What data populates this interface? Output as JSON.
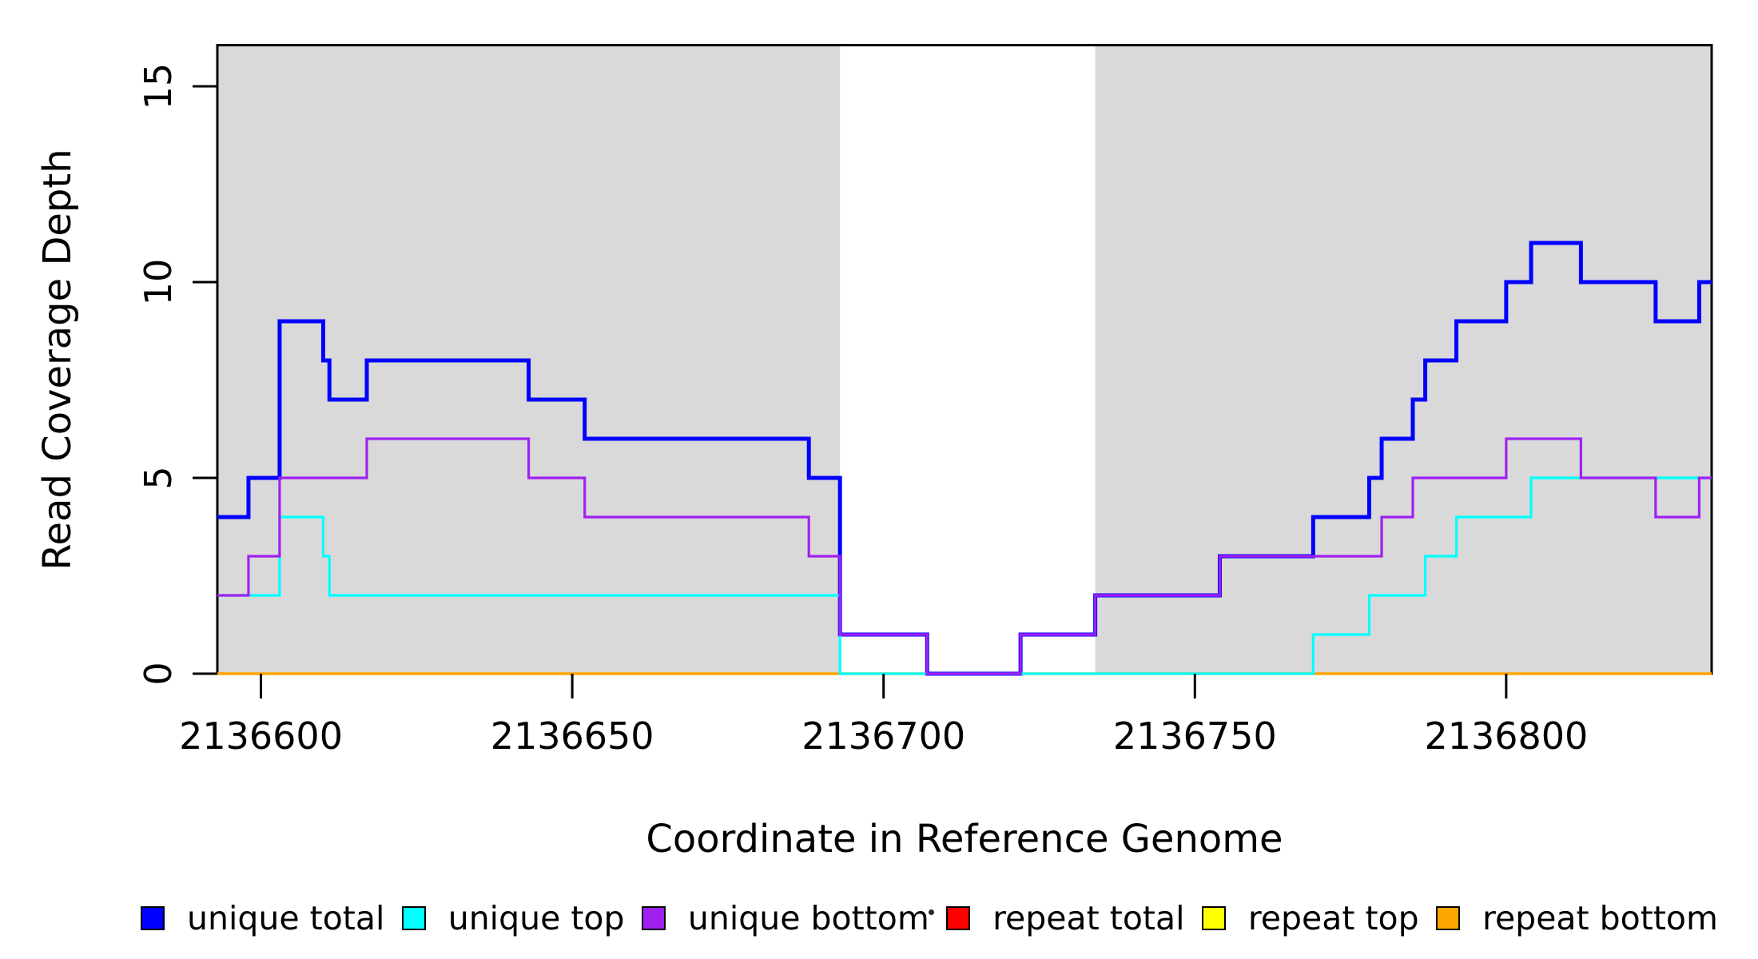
{
  "chart_data": {
    "type": "step-line",
    "xlabel": "Coordinate in Reference Genome",
    "ylabel": "Read Coverage Depth",
    "x_range": [
      2136593,
      2136833
    ],
    "y_range": [
      0,
      16.05
    ],
    "x_ticks": [
      "2136600",
      "2136650",
      "2136700",
      "2136750",
      "2136800"
    ],
    "x_tick_values": [
      2136600,
      2136650,
      2136700,
      2136750,
      2136800
    ],
    "y_ticks": [
      "0",
      "5",
      "10",
      "15"
    ],
    "y_tick_values": [
      0,
      5,
      10,
      15
    ],
    "grid": false,
    "panel_shade_color": "#d9d9d9",
    "shaded_regions": [
      [
        2136593,
        2136693
      ],
      [
        2136734,
        2136833
      ]
    ],
    "unshaded_gap": [
      2136693,
      2136734
    ],
    "series": [
      {
        "name": "unique total",
        "color": "#0000ff",
        "width": 5,
        "points": [
          [
            2136593,
            4
          ],
          [
            2136598,
            5
          ],
          [
            2136603,
            9
          ],
          [
            2136610,
            8
          ],
          [
            2136611,
            7
          ],
          [
            2136617,
            8
          ],
          [
            2136643,
            7
          ],
          [
            2136652,
            6
          ],
          [
            2136688,
            5
          ],
          [
            2136693,
            1
          ],
          [
            2136707,
            0
          ],
          [
            2136722,
            1
          ],
          [
            2136734,
            2
          ],
          [
            2136754,
            3
          ],
          [
            2136769,
            4
          ],
          [
            2136778,
            5
          ],
          [
            2136780,
            6
          ],
          [
            2136785,
            7
          ],
          [
            2136787,
            8
          ],
          [
            2136792,
            9
          ],
          [
            2136800,
            10
          ],
          [
            2136804,
            11
          ],
          [
            2136812,
            10
          ],
          [
            2136824,
            9
          ],
          [
            2136831,
            10
          ]
        ]
      },
      {
        "name": "unique top",
        "color": "#00ffff",
        "width": 3.2,
        "points": [
          [
            2136593,
            2
          ],
          [
            2136603,
            4
          ],
          [
            2136610,
            3
          ],
          [
            2136611,
            2
          ],
          [
            2136693,
            0
          ],
          [
            2136769,
            1
          ],
          [
            2136778,
            2
          ],
          [
            2136787,
            3
          ],
          [
            2136792,
            4
          ],
          [
            2136804,
            5
          ]
        ]
      },
      {
        "name": "unique bottom",
        "color": "#a020f0",
        "width": 3.2,
        "points": [
          [
            2136593,
            2
          ],
          [
            2136598,
            3
          ],
          [
            2136603,
            5
          ],
          [
            2136617,
            6
          ],
          [
            2136643,
            5
          ],
          [
            2136652,
            4
          ],
          [
            2136688,
            3
          ],
          [
            2136693,
            1
          ],
          [
            2136707,
            0
          ],
          [
            2136722,
            1
          ],
          [
            2136734,
            2
          ],
          [
            2136754,
            3
          ],
          [
            2136780,
            4
          ],
          [
            2136785,
            5
          ],
          [
            2136800,
            6
          ],
          [
            2136812,
            5
          ],
          [
            2136824,
            4
          ],
          [
            2136831,
            5
          ]
        ]
      },
      {
        "name": "repeat total",
        "color": "#ff0000",
        "width": 3,
        "points": [
          [
            2136593,
            0
          ]
        ]
      },
      {
        "name": "repeat top",
        "color": "#ffff00",
        "width": 3,
        "points": [
          [
            2136593,
            0
          ]
        ]
      },
      {
        "name": "repeat bottom",
        "color": "#ffa500",
        "width": 3.6,
        "points": [
          [
            2136593,
            0
          ]
        ]
      }
    ],
    "legend": {
      "position": "bottom",
      "entries": [
        {
          "label": "unique total",
          "color": "#0000ff"
        },
        {
          "label": "unique top",
          "color": "#00ffff"
        },
        {
          "label": "unique bottom",
          "color": "#a020f0"
        },
        {
          "label": "repeat total",
          "color": "#ff0000"
        },
        {
          "label": "repeat top",
          "color": "#ffff00"
        },
        {
          "label": "repeat bottom",
          "color": "#ffa500"
        }
      ]
    }
  }
}
